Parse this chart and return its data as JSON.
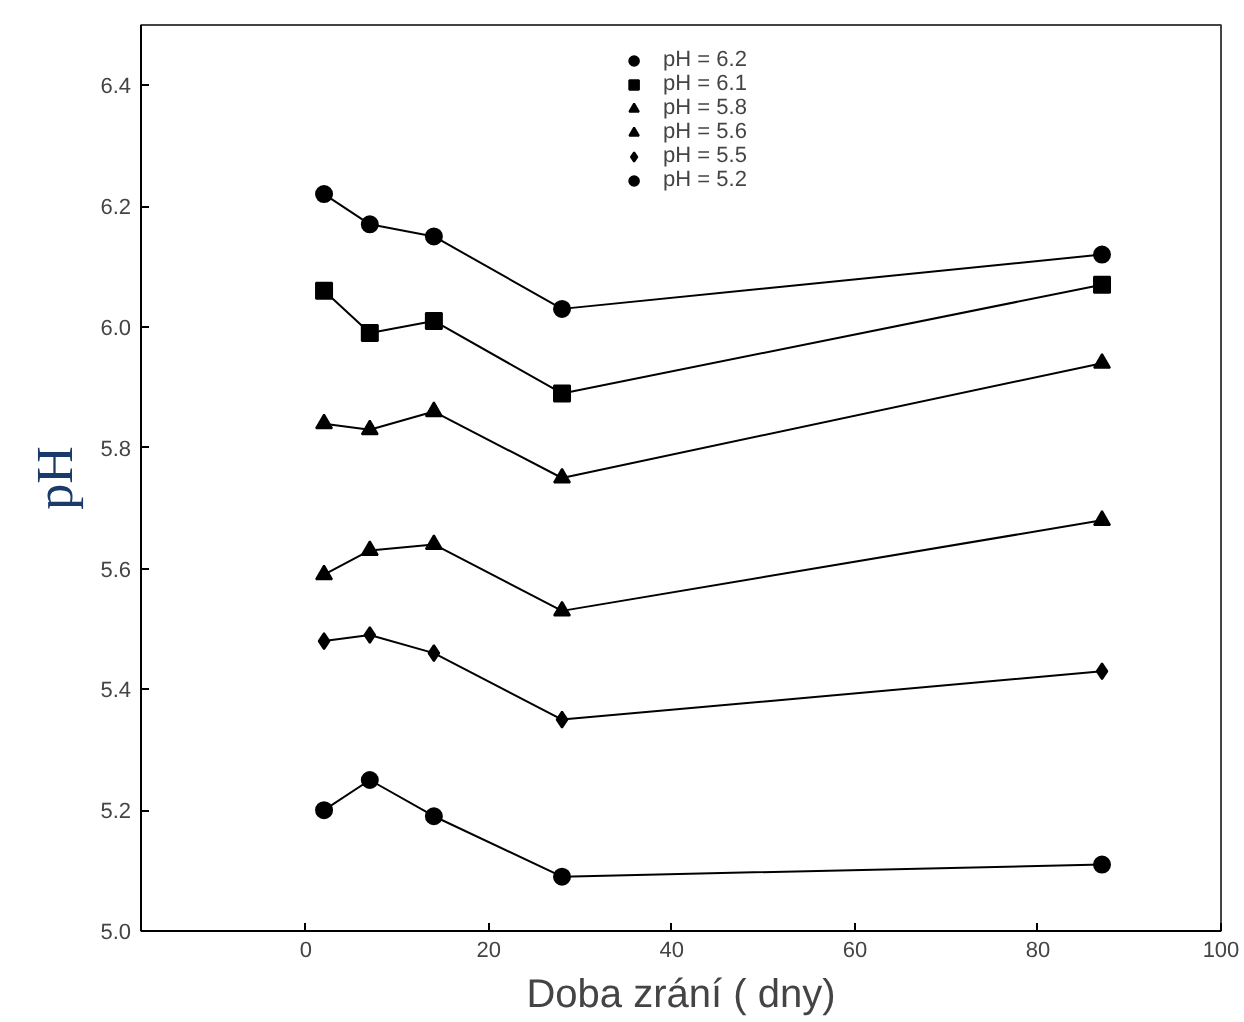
{
  "chart_data": {
    "type": "line",
    "xlabel": "Doba zrání ( dny)",
    "ylabel": "pH",
    "x": [
      2,
      7,
      14,
      28,
      87
    ],
    "xlim": [
      -18,
      100
    ],
    "xticks": [
      0,
      20,
      40,
      60,
      80,
      100
    ],
    "ylim": [
      5.0,
      6.5
    ],
    "yticks": [
      {
        "value": 5.0,
        "label": "5.0"
      },
      5.2,
      5.4,
      5.6,
      5.8,
      {
        "value": 6.0,
        "label": "6.0"
      },
      6.2,
      6.4
    ],
    "grid": false,
    "legend": "top",
    "series": [
      {
        "name": "pH = 6.2",
        "color": "#000000",
        "marker": "circle",
        "values": [
          6.22,
          6.17,
          6.15,
          6.03,
          6.12
        ]
      },
      {
        "name": "pH = 6.1",
        "color": "#000000",
        "marker": "square",
        "values": [
          6.06,
          5.99,
          6.01,
          5.89,
          6.07
        ]
      },
      {
        "name": "pH = 5.8",
        "color": "#000000",
        "marker": "triangle",
        "values": [
          5.84,
          5.83,
          5.86,
          5.75,
          5.94
        ]
      },
      {
        "name": "pH = 5.6",
        "color": "#000000",
        "marker": "triangle",
        "values": [
          5.59,
          5.63,
          5.64,
          5.53,
          5.68
        ]
      },
      {
        "name": "pH = 5.5",
        "color": "#000000",
        "marker": "diamond",
        "values": [
          5.48,
          5.49,
          5.46,
          5.35,
          5.43
        ]
      },
      {
        "name": "pH = 5.2",
        "color": "#000000",
        "marker": "circle",
        "values": [
          5.2,
          5.25,
          5.19,
          5.09,
          5.11
        ]
      }
    ]
  }
}
